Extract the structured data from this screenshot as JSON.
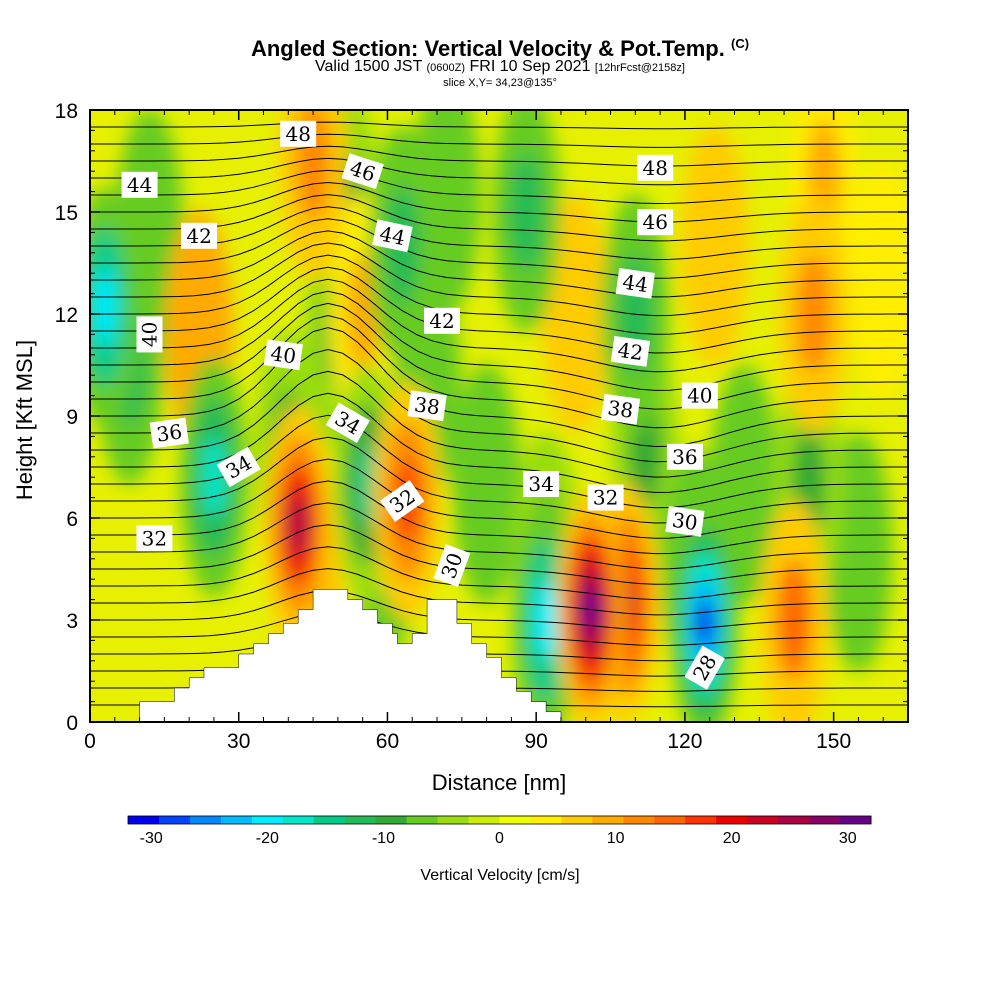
{
  "title": {
    "main": "Angled Section: Vertical Velocity & Pot.Temp.",
    "main_units": "(C)",
    "valid_prefix": "Valid 1500 JST",
    "valid_utc": "(0600Z)",
    "valid_date": "FRI 10 Sep 2021",
    "valid_fcst": "[12hrFcst@2158z]",
    "slice": "slice X,Y= 34,23@135°"
  },
  "chart_data": {
    "type": "heatmap",
    "xlabel": "Distance [nm]",
    "ylabel": "Height [Kft MSL]",
    "xlim": [
      0,
      165
    ],
    "ylim": [
      0,
      18
    ],
    "x_ticks": [
      0,
      30,
      60,
      90,
      120,
      150
    ],
    "y_ticks": [
      0,
      3,
      6,
      9,
      12,
      15,
      18
    ],
    "colorbar": {
      "label": "Vertical Velocity [cm/s]",
      "range": [
        -32,
        32
      ],
      "ticks": [
        -30,
        -20,
        -10,
        0,
        10,
        20,
        30
      ],
      "colors": [
        "#0000ee",
        "#0044ff",
        "#0088ff",
        "#00bbff",
        "#00eeff",
        "#00e8cc",
        "#00cc88",
        "#22bb55",
        "#33aa33",
        "#66cc22",
        "#99dd11",
        "#ccee00",
        "#eeff00",
        "#ffee00",
        "#ffcc00",
        "#ffaa00",
        "#ff8800",
        "#ff6600",
        "#ff3300",
        "#ee0000",
        "#cc0022",
        "#aa0044",
        "#880066",
        "#660088"
      ]
    },
    "velocity_cells": [
      {
        "x": 3,
        "z": 12.2,
        "w": -20
      },
      {
        "x": 8,
        "z": 10.5,
        "w": -12
      },
      {
        "x": 12,
        "z": 14.5,
        "w": -6
      },
      {
        "x": 22,
        "z": 11.5,
        "w": 8
      },
      {
        "x": 25,
        "z": 7.2,
        "w": -18
      },
      {
        "x": 40,
        "z": 8.0,
        "w": -10
      },
      {
        "x": 42,
        "z": 5.8,
        "w": 26
      },
      {
        "x": 44,
        "z": 3.8,
        "w": 18
      },
      {
        "x": 45,
        "z": 16.5,
        "w": 12
      },
      {
        "x": 52,
        "z": 15.0,
        "w": -9
      },
      {
        "x": 50,
        "z": 11.5,
        "w": -9
      },
      {
        "x": 55,
        "z": 12.0,
        "w": 10
      },
      {
        "x": 56,
        "z": 7.0,
        "w": -16
      },
      {
        "x": 60,
        "z": 5.5,
        "w": -14
      },
      {
        "x": 64,
        "z": 6.5,
        "w": 16
      },
      {
        "x": 63,
        "z": 14.0,
        "w": -12
      },
      {
        "x": 68,
        "z": 10.0,
        "w": -8
      },
      {
        "x": 72,
        "z": 15.5,
        "w": -8
      },
      {
        "x": 80,
        "z": 7.0,
        "w": -8
      },
      {
        "x": 88,
        "z": 15.0,
        "w": -12
      },
      {
        "x": 92,
        "z": 3.0,
        "w": -20
      },
      {
        "x": 92,
        "z": 5.0,
        "w": -10
      },
      {
        "x": 98,
        "z": 12.0,
        "w": 6
      },
      {
        "x": 101,
        "z": 3.3,
        "w": 32
      },
      {
        "x": 108,
        "z": 3.5,
        "w": 22
      },
      {
        "x": 110,
        "z": 12.0,
        "w": -12
      },
      {
        "x": 112,
        "z": 8.0,
        "w": -10
      },
      {
        "x": 124,
        "z": 2.9,
        "w": -30
      },
      {
        "x": 122,
        "z": 4.5,
        "w": -14
      },
      {
        "x": 126,
        "z": 14.0,
        "w": 6
      },
      {
        "x": 132,
        "z": 7.0,
        "w": -8
      },
      {
        "x": 142,
        "z": 3.0,
        "w": 14
      },
      {
        "x": 145,
        "z": 7.0,
        "w": -10
      },
      {
        "x": 146,
        "z": 12.0,
        "w": 12
      },
      {
        "x": 148,
        "z": 16.0,
        "w": 10
      },
      {
        "x": 155,
        "z": 5.0,
        "w": -6
      },
      {
        "x": 160,
        "z": 13.0,
        "w": 4
      }
    ],
    "terrain": [
      [
        0,
        0
      ],
      [
        10,
        0
      ],
      [
        10,
        0.6
      ],
      [
        17,
        0.6
      ],
      [
        17,
        1.0
      ],
      [
        20,
        1.0
      ],
      [
        20,
        1.3
      ],
      [
        23,
        1.3
      ],
      [
        23,
        1.6
      ],
      [
        30,
        1.6
      ],
      [
        30,
        2.0
      ],
      [
        33,
        2.0
      ],
      [
        33,
        2.3
      ],
      [
        36,
        2.3
      ],
      [
        36,
        2.6
      ],
      [
        39,
        2.6
      ],
      [
        39,
        2.9
      ],
      [
        42,
        2.9
      ],
      [
        42,
        3.3
      ],
      [
        45,
        3.3
      ],
      [
        45,
        3.9
      ],
      [
        52,
        3.9
      ],
      [
        52,
        3.6
      ],
      [
        55,
        3.6
      ],
      [
        55,
        3.3
      ],
      [
        58,
        3.3
      ],
      [
        58,
        2.9
      ],
      [
        61,
        2.9
      ],
      [
        61,
        2.6
      ],
      [
        62,
        2.6
      ],
      [
        62,
        2.3
      ],
      [
        65,
        2.3
      ],
      [
        65,
        2.6
      ],
      [
        68,
        2.6
      ],
      [
        68,
        3.6
      ],
      [
        74,
        3.6
      ],
      [
        74,
        2.9
      ],
      [
        77,
        2.9
      ],
      [
        77,
        2.3
      ],
      [
        80,
        2.3
      ],
      [
        80,
        1.9
      ],
      [
        83,
        1.9
      ],
      [
        83,
        1.3
      ],
      [
        86,
        1.3
      ],
      [
        86,
        0.9
      ],
      [
        89,
        0.9
      ],
      [
        89,
        0.6
      ],
      [
        92,
        0.6
      ],
      [
        92,
        0.3
      ],
      [
        95,
        0.3
      ],
      [
        95,
        0
      ]
    ],
    "contour_labels": [
      {
        "text": "48",
        "x": 42,
        "z": 17.3,
        "angle": 0
      },
      {
        "text": "44",
        "x": 10,
        "z": 15.8,
        "angle": 0
      },
      {
        "text": "46",
        "x": 55,
        "z": 16.2,
        "angle": 18
      },
      {
        "text": "42",
        "x": 22,
        "z": 14.3,
        "angle": 0
      },
      {
        "text": "44",
        "x": 61,
        "z": 14.3,
        "angle": 12
      },
      {
        "text": "48",
        "x": 114,
        "z": 16.3,
        "angle": 0
      },
      {
        "text": "46",
        "x": 114,
        "z": 14.7,
        "angle": 0
      },
      {
        "text": "44",
        "x": 110,
        "z": 12.9,
        "angle": 8
      },
      {
        "text": "40",
        "x": 12,
        "z": 11.4,
        "angle": -90
      },
      {
        "text": "42",
        "x": 71,
        "z": 11.8,
        "angle": 0
      },
      {
        "text": "42",
        "x": 109,
        "z": 10.9,
        "angle": 8
      },
      {
        "text": "40",
        "x": 39,
        "z": 10.8,
        "angle": 8
      },
      {
        "text": "40",
        "x": 123,
        "z": 9.6,
        "angle": 0
      },
      {
        "text": "38",
        "x": 68,
        "z": 9.3,
        "angle": 8
      },
      {
        "text": "38",
        "x": 107,
        "z": 9.2,
        "angle": 8
      },
      {
        "text": "36",
        "x": 16,
        "z": 8.5,
        "angle": -8
      },
      {
        "text": "34",
        "x": 52,
        "z": 8.8,
        "angle": 30
      },
      {
        "text": "34",
        "x": 30,
        "z": 7.5,
        "angle": -30
      },
      {
        "text": "36",
        "x": 120,
        "z": 7.8,
        "angle": 0
      },
      {
        "text": "34",
        "x": 91,
        "z": 7.0,
        "angle": 0
      },
      {
        "text": "32",
        "x": 63,
        "z": 6.5,
        "angle": -35
      },
      {
        "text": "32",
        "x": 104,
        "z": 6.6,
        "angle": 0
      },
      {
        "text": "30",
        "x": 120,
        "z": 5.9,
        "angle": 8
      },
      {
        "text": "32",
        "x": 13,
        "z": 5.4,
        "angle": 0
      },
      {
        "text": "30",
        "x": 73,
        "z": 4.6,
        "angle": -70
      },
      {
        "text": "28",
        "x": 124,
        "z": 1.6,
        "angle": -60
      }
    ]
  }
}
